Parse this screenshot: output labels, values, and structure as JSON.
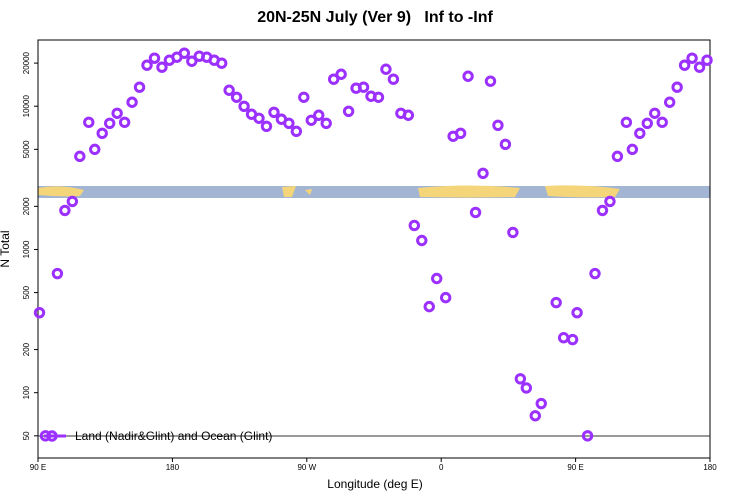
{
  "chart_data": {
    "type": "scatter",
    "title": "20N-25N July (Ver 9)   Inf to -Inf",
    "x_label": "Longitude (deg E)",
    "y_label": "N Total",
    "log_y": true,
    "xlim": [
      90,
      540
    ],
    "ylim": [
      35,
      29000
    ],
    "xticks": [
      {
        "value": 90,
        "label": "90 E"
      },
      180,
      {
        "value": 270,
        "label": "90 W"
      },
      {
        "value": 360,
        "label": "0"
      },
      {
        "value": 450,
        "label": "90 E"
      },
      {
        "value": 540,
        "label": "180"
      }
    ],
    "yticks": [
      50,
      100,
      200,
      500,
      1000,
      2000,
      5000,
      10000,
      20000
    ],
    "series": [
      {
        "name": "Land (Nadir&Glint) and Ocean (Glint)",
        "color": "#9b30ff",
        "x": [
          91,
          95,
          103,
          108,
          113,
          118,
          124,
          128,
          133,
          138,
          143,
          148,
          153,
          158,
          163,
          168,
          173,
          178,
          183,
          188,
          193,
          198,
          203,
          208,
          213,
          218,
          223,
          228,
          233,
          238,
          243,
          248,
          253,
          258,
          263,
          268,
          273,
          278,
          283,
          288,
          293,
          298,
          303,
          308,
          313,
          318,
          323,
          328,
          333,
          338,
          342,
          347,
          352,
          357,
          363,
          368,
          373,
          378,
          383,
          388,
          393,
          398,
          403,
          408,
          413,
          417,
          423,
          427,
          437,
          442,
          448,
          451,
          458,
          463,
          468,
          473,
          478,
          484,
          488,
          493,
          498,
          503,
          508,
          513,
          518,
          523,
          528,
          533,
          538
        ],
        "values": [
          362,
          50,
          679,
          1873,
          2165,
          4467,
          7720,
          5000,
          6470,
          7600,
          8930,
          7720,
          10660,
          13580,
          19340,
          21640,
          18720,
          20960,
          21990,
          23460,
          20610,
          22350,
          21990,
          20960,
          19970,
          12930,
          11550,
          9990,
          8790,
          8240,
          7240,
          9070,
          8110,
          7600,
          6680,
          11550,
          7980,
          8650,
          7600,
          15440,
          16720,
          9220,
          13360,
          13580,
          11740,
          11550,
          18130,
          15440,
          8930,
          8650,
          1471,
          1155,
          399,
          627,
          461,
          6170,
          6470,
          16190,
          1813,
          3400,
          14950,
          7360,
          5420,
          1315,
          125,
          108,
          69,
          84,
          426,
          242,
          235,
          362,
          50,
          679,
          1873,
          2165,
          4467,
          7720,
          5000,
          6470,
          7600,
          8930,
          7720,
          10660,
          13580,
          19340,
          21640,
          18720,
          20960
        ]
      }
    ]
  }
}
